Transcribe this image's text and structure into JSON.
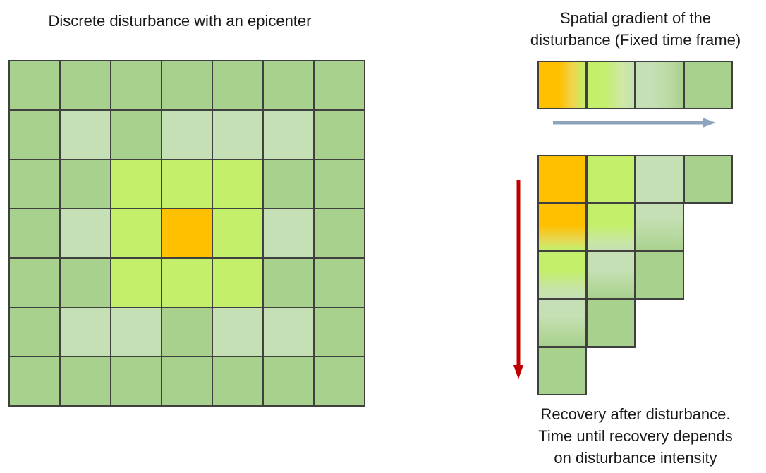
{
  "left_panel": {
    "title": "Discrete disturbance with an epicenter",
    "legend_colors": {
      "dark_green": "#a9d18e",
      "pale_green": "#c5e0b4",
      "lime": "#c3ef6b",
      "orange": "#ffc000"
    },
    "grid": [
      [
        "dark_green",
        "dark_green",
        "dark_green",
        "dark_green",
        "dark_green",
        "dark_green",
        "dark_green"
      ],
      [
        "dark_green",
        "pale_green",
        "dark_green",
        "pale_green",
        "pale_green",
        "pale_green",
        "dark_green"
      ],
      [
        "dark_green",
        "dark_green",
        "lime",
        "lime",
        "lime",
        "dark_green",
        "dark_green"
      ],
      [
        "dark_green",
        "pale_green",
        "lime",
        "orange",
        "lime",
        "pale_green",
        "dark_green"
      ],
      [
        "dark_green",
        "dark_green",
        "lime",
        "lime",
        "lime",
        "dark_green",
        "dark_green"
      ],
      [
        "dark_green",
        "pale_green",
        "pale_green",
        "dark_green",
        "pale_green",
        "pale_green",
        "dark_green"
      ],
      [
        "dark_green",
        "dark_green",
        "dark_green",
        "dark_green",
        "dark_green",
        "dark_green",
        "dark_green"
      ]
    ]
  },
  "right_panel": {
    "title_line1": "Spatial gradient of the",
    "title_line2": "disturbance (Fixed time frame)",
    "caption_line1": "Recovery after disturbance.",
    "caption_line2": "Time until recovery depends",
    "caption_line3": "on disturbance intensity",
    "arrow_colors": {
      "horizontal": "#8ea4bc",
      "vertical": "#c00000"
    }
  }
}
